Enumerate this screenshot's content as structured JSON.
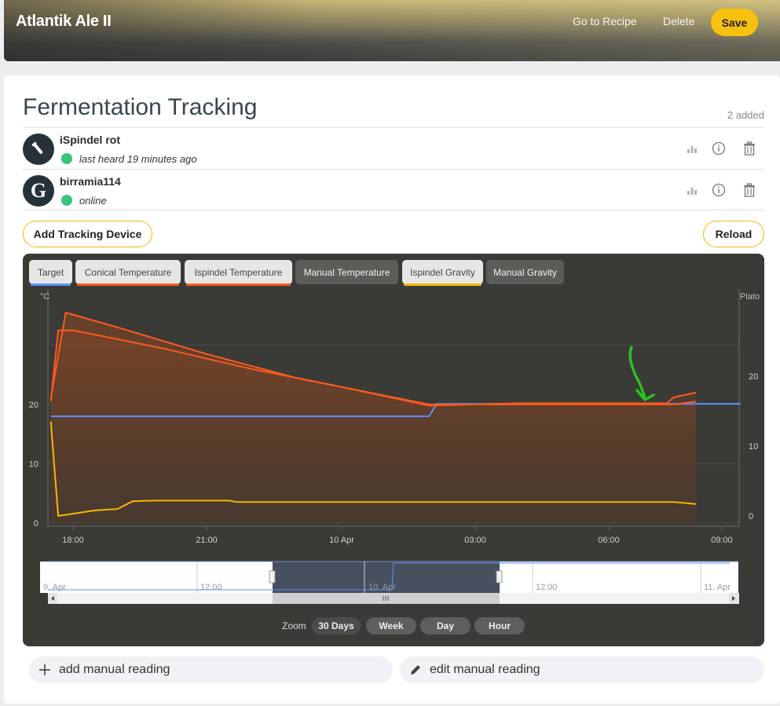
{
  "header": {
    "title": "Atlantik Ale II",
    "go_to_recipe": "Go to Recipe",
    "delete": "Delete",
    "save": "Save"
  },
  "fermentation": {
    "title": "Fermentation Tracking",
    "added_count": "2 added",
    "devices": [
      {
        "name": "iSpindel rot",
        "status": "last heard 19 minutes ago",
        "status_color": "#3cc37a",
        "icon": "flask-icon"
      },
      {
        "name": "birramia114",
        "status": "online",
        "status_color": "#3cc37a",
        "avatar_letter": "G"
      }
    ],
    "add_device": "Add Tracking Device",
    "reload": "Reload"
  },
  "chart": {
    "legend": [
      {
        "label": "Target",
        "active": true,
        "color": "#5b8ff9"
      },
      {
        "label": "Conical Temperature",
        "active": true,
        "color": "#ff5a1f"
      },
      {
        "label": "Ispindel Temperature",
        "active": true,
        "color": "#ff5a1f"
      },
      {
        "label": "Manual Temperature",
        "active": false,
        "color": ""
      },
      {
        "label": "Ispindel Gravity",
        "active": true,
        "color": "#f5b700"
      },
      {
        "label": "Manual Gravity",
        "active": false,
        "color": ""
      }
    ],
    "left_unit": "°C",
    "right_unit": "Plato",
    "left_ticks": [
      "20",
      "10",
      "0"
    ],
    "right_ticks": [
      "20",
      "10",
      "0"
    ],
    "x_ticks": [
      "18:00",
      "21:00",
      "10 Apr",
      "03:00",
      "06:00",
      "09:00"
    ],
    "navigator_ticks": [
      "9. Apr",
      "12:00",
      "10. Apr",
      "12:00",
      "11. Apr"
    ],
    "zoom_label": "Zoom",
    "zoom_buttons": [
      "30 Days",
      "Week",
      "Day",
      "Hour"
    ]
  },
  "chart_data": {
    "type": "line",
    "x_unit": "time (9 Apr 17:30 – 10 Apr 08:00)",
    "y_left": {
      "label": "°C",
      "ticks": [
        0,
        10,
        20
      ]
    },
    "y_right": {
      "label": "Plato",
      "ticks": [
        0,
        10,
        20
      ]
    },
    "series": [
      {
        "name": "Target",
        "axis": "left",
        "points": [
          [
            "17:30",
            18
          ],
          [
            "02:00",
            18
          ],
          [
            "02:10",
            20.1
          ],
          [
            "09:00",
            20.1
          ]
        ]
      },
      {
        "name": "Conical Temperature",
        "axis": "left",
        "points": [
          [
            "17:30",
            21
          ],
          [
            "17:50",
            35.5
          ],
          [
            "19:00",
            33
          ],
          [
            "21:00",
            28.5
          ],
          [
            "23:00",
            24.5
          ],
          [
            "01:00",
            21.5
          ],
          [
            "02:00",
            20
          ],
          [
            "04:00",
            20
          ],
          [
            "06:00",
            20
          ],
          [
            "07:30",
            20
          ],
          [
            "08:00",
            20.5
          ]
        ]
      },
      {
        "name": "Ispindel Temperature",
        "axis": "left",
        "points": [
          [
            "17:30",
            20.5
          ],
          [
            "17:40",
            32.5
          ],
          [
            "18:00",
            32.5
          ],
          [
            "20:00",
            29.5
          ],
          [
            "22:00",
            26
          ],
          [
            "00:00",
            23
          ],
          [
            "02:00",
            19.8
          ],
          [
            "04:00",
            20.2
          ],
          [
            "06:00",
            20.2
          ],
          [
            "07:20",
            20.2
          ],
          [
            "07:30",
            21.2
          ],
          [
            "08:00",
            22
          ]
        ]
      },
      {
        "name": "Ispindel Gravity",
        "axis": "right",
        "points": [
          [
            "17:30",
            13.5
          ],
          [
            "17:40",
            0
          ],
          [
            "18:30",
            0.8
          ],
          [
            "19:00",
            1
          ],
          [
            "19:20",
            2.1
          ],
          [
            "19:50",
            2.2
          ],
          [
            "21:30",
            2.2
          ],
          [
            "21:40",
            2
          ],
          [
            "07:30",
            2
          ],
          [
            "08:00",
            1.7
          ]
        ]
      }
    ]
  },
  "manual": {
    "add_label": "add manual reading",
    "edit_label": "edit manual reading"
  }
}
